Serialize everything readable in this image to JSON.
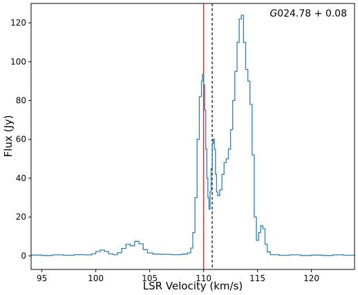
{
  "chart_data": {
    "type": "line",
    "step": true,
    "xlabel": "LSR Velocity (km/s)",
    "ylabel": "Flux (Jy)",
    "xlim": [
      94,
      124
    ],
    "ylim": [
      -7,
      130
    ],
    "xticks": [
      95,
      100,
      105,
      110,
      115,
      120
    ],
    "yticks": [
      0,
      20,
      40,
      60,
      80,
      100,
      120
    ],
    "grid": false,
    "annotation": {
      "prefix": "G",
      "text": "024.78 + 0.08",
      "placement": "top-right"
    },
    "vlines": [
      {
        "x": 110.0,
        "color": "#e8272c",
        "style": "solid"
      },
      {
        "x": 110.8,
        "color": "#333333",
        "style": "dashed"
      }
    ],
    "series": [
      {
        "color": "#2f7fb5",
        "points": [
          [
            94.0,
            0.4
          ],
          [
            95.0,
            0.2
          ],
          [
            96.0,
            0.5
          ],
          [
            97.0,
            0.3
          ],
          [
            98.0,
            0.6
          ],
          [
            99.0,
            0.5
          ],
          [
            99.6,
            1.0
          ],
          [
            100.0,
            2.2
          ],
          [
            100.4,
            3.0
          ],
          [
            100.8,
            2.2
          ],
          [
            101.2,
            1.0
          ],
          [
            101.6,
            0.6
          ],
          [
            102.0,
            1.6
          ],
          [
            102.4,
            3.8
          ],
          [
            102.8,
            6.0
          ],
          [
            103.2,
            5.2
          ],
          [
            103.6,
            7.5
          ],
          [
            104.0,
            6.2
          ],
          [
            104.4,
            3.2
          ],
          [
            104.8,
            1.5
          ],
          [
            105.3,
            0.9
          ],
          [
            106.0,
            0.8
          ],
          [
            107.0,
            0.6
          ],
          [
            108.0,
            0.9
          ],
          [
            108.5,
            1.5
          ],
          [
            108.8,
            4.0
          ],
          [
            109.0,
            12.0
          ],
          [
            109.2,
            30.0
          ],
          [
            109.4,
            60.0
          ],
          [
            109.6,
            82.0
          ],
          [
            109.8,
            90.0
          ],
          [
            109.9,
            93.5
          ],
          [
            110.0,
            88.0
          ],
          [
            110.1,
            75.0
          ],
          [
            110.2,
            55.0
          ],
          [
            110.3,
            40.0
          ],
          [
            110.4,
            30.0
          ],
          [
            110.5,
            24.0
          ],
          [
            110.6,
            33.0
          ],
          [
            110.7,
            45.0
          ],
          [
            110.8,
            58.0
          ],
          [
            110.9,
            60.0
          ],
          [
            111.0,
            55.0
          ],
          [
            111.1,
            42.0
          ],
          [
            111.2,
            33.0
          ],
          [
            111.3,
            31.0
          ],
          [
            111.5,
            34.0
          ],
          [
            111.7,
            42.0
          ],
          [
            111.9,
            48.0
          ],
          [
            112.1,
            50.0
          ],
          [
            112.3,
            55.0
          ],
          [
            112.5,
            65.0
          ],
          [
            112.7,
            80.0
          ],
          [
            112.9,
            95.0
          ],
          [
            113.1,
            110.0
          ],
          [
            113.3,
            122.0
          ],
          [
            113.5,
            124.0
          ],
          [
            113.7,
            110.0
          ],
          [
            113.9,
            96.0
          ],
          [
            114.1,
            90.0
          ],
          [
            114.3,
            78.0
          ],
          [
            114.5,
            52.0
          ],
          [
            114.7,
            20.0
          ],
          [
            114.9,
            8.0
          ],
          [
            115.1,
            12.0
          ],
          [
            115.3,
            15.5
          ],
          [
            115.5,
            14.0
          ],
          [
            115.7,
            6.0
          ],
          [
            115.9,
            2.0
          ],
          [
            116.2,
            0.6
          ],
          [
            117.0,
            0.3
          ],
          [
            118.0,
            0.5
          ],
          [
            119.0,
            0.2
          ],
          [
            120.0,
            0.4
          ],
          [
            121.0,
            0.2
          ],
          [
            122.0,
            0.5
          ],
          [
            123.0,
            0.3
          ],
          [
            124.0,
            0.4
          ]
        ]
      }
    ]
  }
}
